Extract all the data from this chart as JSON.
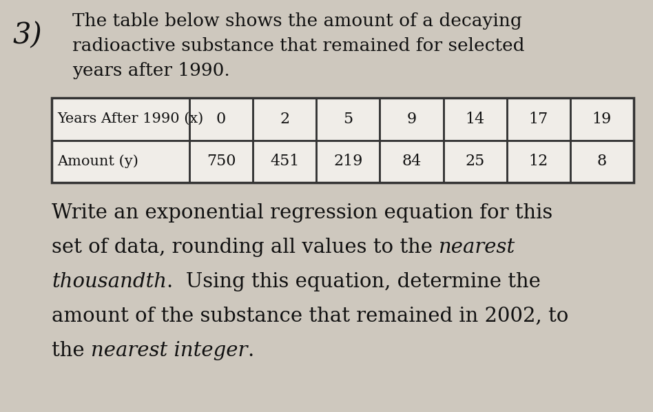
{
  "problem_number": "3)",
  "intro_text_lines": [
    "The table below shows the amount of a decaying",
    "radioactive substance that remained for selected",
    "years after 1990."
  ],
  "table_header_label": "Years After 1990 (x)",
  "table_header_values": [
    "0",
    "2",
    "5",
    "9",
    "14",
    "17",
    "19"
  ],
  "table_row_label": "Amount (y)",
  "table_row_values": [
    "750",
    "451",
    "219",
    "84",
    "25",
    "12",
    "8"
  ],
  "body_lines": [
    [
      [
        "Write an exponential regression equation for this",
        "normal"
      ]
    ],
    [
      [
        "set of data, rounding all values to the ",
        "normal"
      ],
      [
        "nearest",
        "italic"
      ]
    ],
    [
      [
        "thousandth",
        "italic"
      ],
      [
        ".  Using this equation, determine the",
        "normal"
      ]
    ],
    [
      [
        "amount of the substance that remained in 2002, to",
        "normal"
      ]
    ],
    [
      [
        "the ",
        "normal"
      ],
      [
        "nearest integer",
        "italic"
      ],
      [
        ".",
        "normal"
      ]
    ]
  ],
  "bg_color": "#cec8be",
  "text_color": "#111111",
  "table_bg": "#f0ede8",
  "table_border_color": "#333333",
  "number_fontsize": 30,
  "intro_fontsize": 19,
  "table_header_fontsize": 15,
  "table_value_fontsize": 16,
  "body_fontsize": 21
}
